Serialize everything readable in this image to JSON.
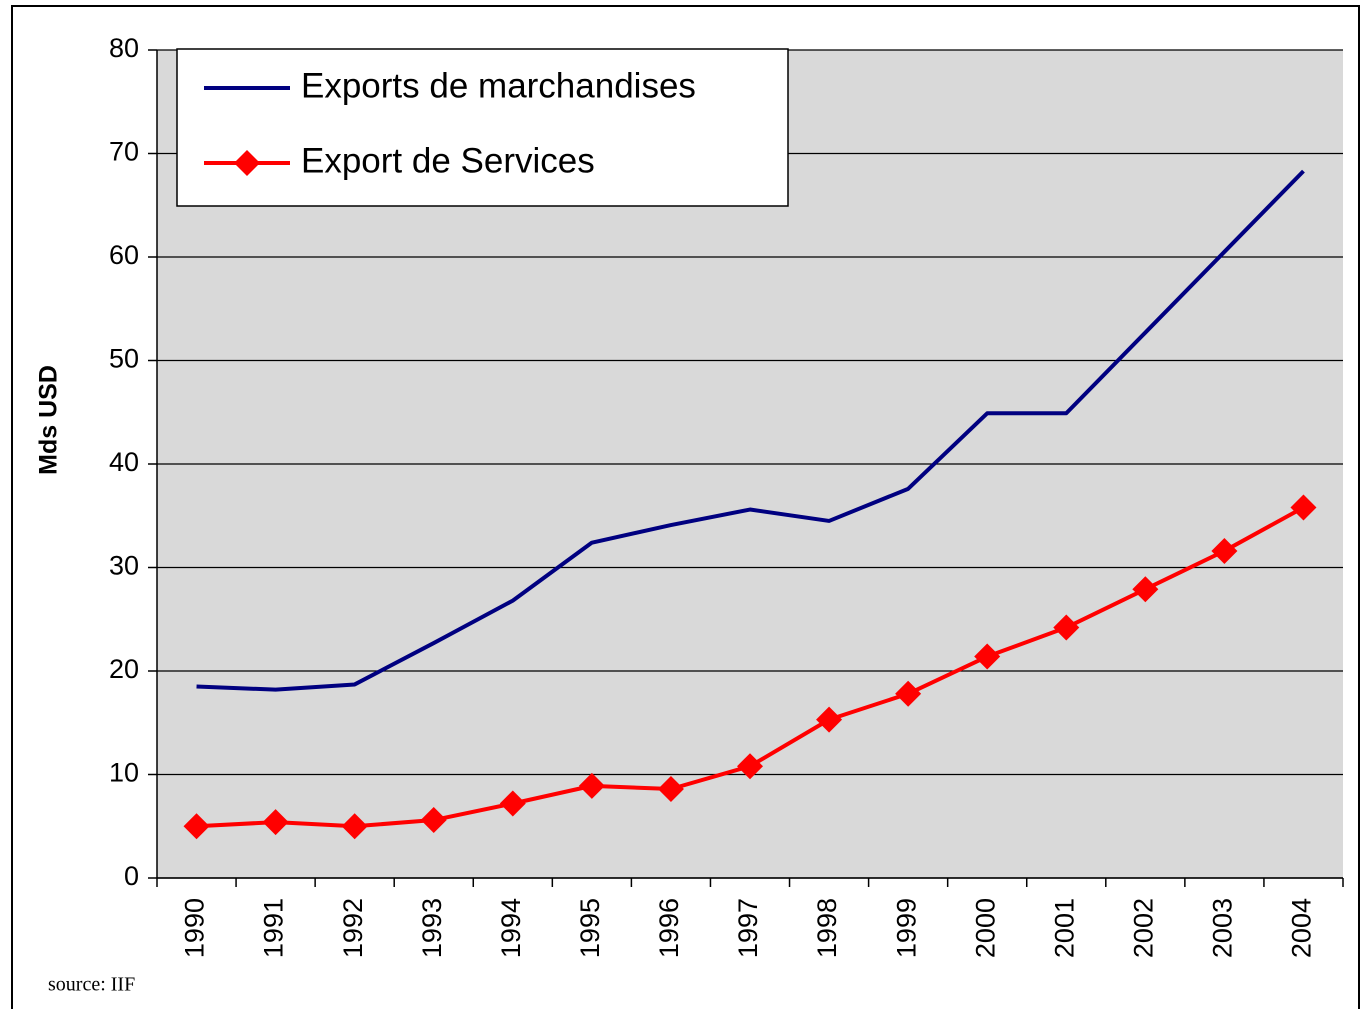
{
  "chart_data": {
    "type": "line",
    "ylabel": "Mds USD",
    "source": "source: IIF",
    "categories": [
      "1990",
      "1991",
      "1992",
      "1993",
      "1994",
      "1995",
      "1996",
      "1997",
      "1998",
      "1999",
      "2000",
      "2001",
      "2002",
      "2003",
      "2004"
    ],
    "series": [
      {
        "name": "Exports de marchandises",
        "color": "#000080",
        "marker": false,
        "values": [
          18.5,
          18.2,
          18.7,
          22.7,
          26.8,
          32.4,
          34.1,
          35.6,
          34.5,
          37.6,
          44.9,
          44.9,
          52.7,
          60.5,
          68.3
        ]
      },
      {
        "name": "Export de Services",
        "color": "#ff0000",
        "marker": true,
        "values": [
          5.0,
          5.4,
          5.0,
          5.6,
          7.2,
          8.9,
          8.6,
          10.8,
          15.3,
          17.8,
          21.4,
          24.2,
          27.9,
          31.6,
          35.8
        ]
      }
    ],
    "ylim": [
      0,
      80
    ],
    "yticks": [
      0,
      10,
      20,
      30,
      40,
      50,
      60,
      70,
      80
    ],
    "grid": true,
    "legend": "upper left"
  }
}
